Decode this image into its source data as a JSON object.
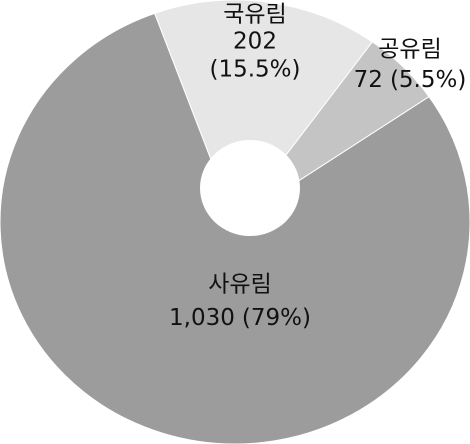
{
  "chart_data": {
    "type": "pie",
    "categories": [
      "국유림",
      "공유림",
      "사유림"
    ],
    "values": [
      202,
      72,
      1030
    ],
    "value_labels": [
      "202",
      "72",
      "1,030"
    ],
    "percent_labels": [
      "(15.5%)",
      "(5.5%)",
      "(79%)"
    ],
    "colors": [
      "#e6e6e6",
      "#c4c4c4",
      "#9c9c9c"
    ]
  }
}
